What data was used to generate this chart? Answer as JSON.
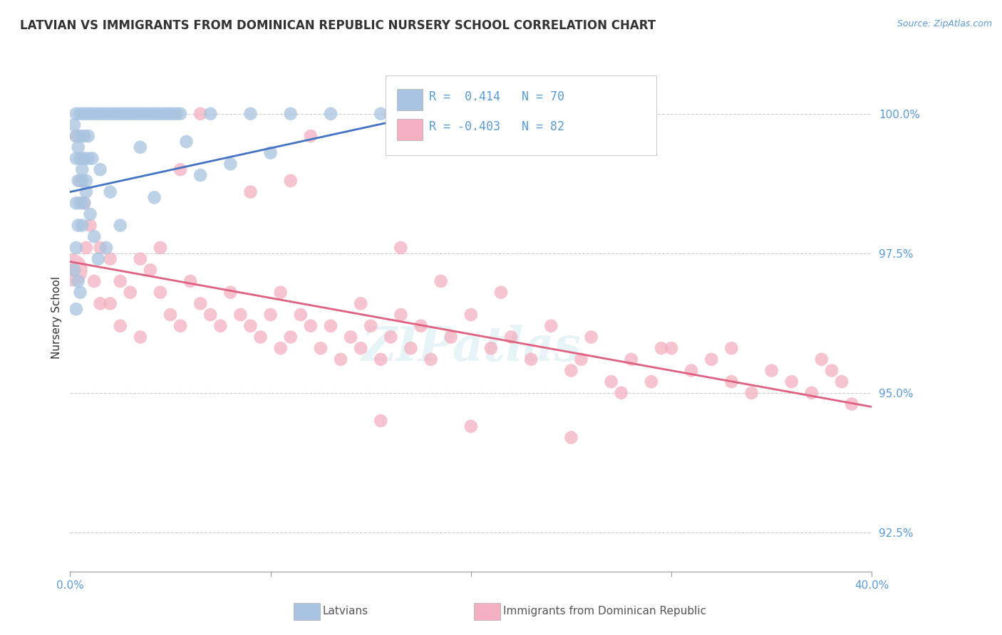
{
  "title": "LATVIAN VS IMMIGRANTS FROM DOMINICAN REPUBLIC NURSERY SCHOOL CORRELATION CHART",
  "source": "Source: ZipAtlas.com",
  "ylabel": "Nursery School",
  "y_ticks": [
    92.5,
    95.0,
    97.5,
    100.0
  ],
  "y_tick_labels": [
    "92.5%",
    "95.0%",
    "97.5%",
    "100.0%"
  ],
  "x_min": 0.0,
  "x_max": 40.0,
  "y_min": 91.8,
  "y_max": 100.9,
  "blue_R": 0.414,
  "blue_N": 70,
  "pink_R": -0.403,
  "pink_N": 82,
  "blue_color": "#a8c4e0",
  "blue_line_color": "#4472c4",
  "pink_color": "#f4b0c0",
  "pink_line_color": "#e06080",
  "legend_label_blue": "Latvians",
  "legend_label_pink": "Immigrants from Dominican Republic",
  "watermark": "ZIPatlas",
  "blue_line_x": [
    0.0,
    18.5
  ],
  "blue_line_y": [
    98.6,
    100.05
  ],
  "pink_line_x": [
    0.0,
    40.0
  ],
  "pink_line_y": [
    97.35,
    94.75
  ],
  "blue_dots": [
    [
      0.3,
      100.0
    ],
    [
      0.5,
      100.0
    ],
    [
      0.7,
      100.0
    ],
    [
      0.9,
      100.0
    ],
    [
      1.1,
      100.0
    ],
    [
      1.3,
      100.0
    ],
    [
      1.5,
      100.0
    ],
    [
      1.7,
      100.0
    ],
    [
      1.9,
      100.0
    ],
    [
      2.1,
      100.0
    ],
    [
      2.3,
      100.0
    ],
    [
      2.5,
      100.0
    ],
    [
      2.7,
      100.0
    ],
    [
      2.9,
      100.0
    ],
    [
      3.1,
      100.0
    ],
    [
      3.3,
      100.0
    ],
    [
      3.5,
      100.0
    ],
    [
      3.7,
      100.0
    ],
    [
      3.9,
      100.0
    ],
    [
      4.1,
      100.0
    ],
    [
      4.3,
      100.0
    ],
    [
      4.5,
      100.0
    ],
    [
      4.7,
      100.0
    ],
    [
      4.9,
      100.0
    ],
    [
      5.1,
      100.0
    ],
    [
      5.3,
      100.0
    ],
    [
      5.5,
      100.0
    ],
    [
      7.0,
      100.0
    ],
    [
      9.0,
      100.0
    ],
    [
      11.0,
      100.0
    ],
    [
      13.0,
      100.0
    ],
    [
      16.0,
      100.0
    ],
    [
      0.3,
      99.6
    ],
    [
      0.5,
      99.6
    ],
    [
      0.7,
      99.6
    ],
    [
      0.9,
      99.6
    ],
    [
      0.3,
      99.2
    ],
    [
      0.5,
      99.2
    ],
    [
      0.7,
      99.2
    ],
    [
      0.9,
      99.2
    ],
    [
      1.1,
      99.2
    ],
    [
      0.4,
      98.8
    ],
    [
      0.6,
      98.8
    ],
    [
      0.8,
      98.8
    ],
    [
      0.3,
      98.4
    ],
    [
      0.5,
      98.4
    ],
    [
      0.7,
      98.4
    ],
    [
      0.4,
      98.0
    ],
    [
      0.6,
      98.0
    ],
    [
      0.3,
      97.6
    ],
    [
      1.5,
      99.0
    ],
    [
      2.0,
      98.6
    ],
    [
      1.8,
      97.6
    ],
    [
      3.5,
      99.4
    ],
    [
      0.2,
      99.8
    ],
    [
      0.4,
      99.4
    ],
    [
      0.6,
      99.0
    ],
    [
      0.8,
      98.6
    ],
    [
      1.0,
      98.2
    ],
    [
      1.2,
      97.8
    ],
    [
      1.4,
      97.4
    ],
    [
      0.2,
      97.2
    ],
    [
      0.4,
      97.0
    ],
    [
      0.5,
      96.8
    ],
    [
      0.3,
      96.5
    ],
    [
      5.8,
      99.5
    ],
    [
      10.0,
      99.3
    ],
    [
      15.5,
      100.0
    ],
    [
      18.5,
      100.0
    ],
    [
      6.5,
      98.9
    ],
    [
      8.0,
      99.1
    ],
    [
      4.2,
      98.5
    ],
    [
      2.5,
      98.0
    ]
  ],
  "pink_dots_large": [
    [
      0.05,
      97.2
    ]
  ],
  "pink_dots": [
    [
      0.3,
      99.6
    ],
    [
      0.5,
      98.8
    ],
    [
      0.7,
      98.4
    ],
    [
      1.0,
      98.0
    ],
    [
      1.5,
      97.6
    ],
    [
      2.0,
      97.4
    ],
    [
      2.5,
      97.0
    ],
    [
      3.0,
      96.8
    ],
    [
      3.5,
      97.4
    ],
    [
      4.0,
      97.2
    ],
    [
      4.5,
      96.8
    ],
    [
      5.0,
      96.4
    ],
    [
      5.5,
      96.2
    ],
    [
      6.0,
      97.0
    ],
    [
      6.5,
      96.6
    ],
    [
      7.0,
      96.4
    ],
    [
      7.5,
      96.2
    ],
    [
      8.0,
      96.8
    ],
    [
      8.5,
      96.4
    ],
    [
      9.0,
      96.2
    ],
    [
      9.5,
      96.0
    ],
    [
      10.0,
      96.4
    ],
    [
      10.5,
      96.8
    ],
    [
      11.0,
      96.0
    ],
    [
      11.5,
      96.4
    ],
    [
      12.0,
      96.2
    ],
    [
      12.5,
      95.8
    ],
    [
      13.0,
      96.2
    ],
    [
      13.5,
      95.6
    ],
    [
      14.0,
      96.0
    ],
    [
      14.5,
      95.8
    ],
    [
      15.0,
      96.2
    ],
    [
      15.5,
      95.6
    ],
    [
      16.0,
      96.0
    ],
    [
      16.5,
      96.4
    ],
    [
      17.0,
      95.8
    ],
    [
      17.5,
      96.2
    ],
    [
      18.0,
      95.6
    ],
    [
      19.0,
      96.0
    ],
    [
      20.0,
      96.4
    ],
    [
      21.0,
      95.8
    ],
    [
      22.0,
      96.0
    ],
    [
      23.0,
      95.6
    ],
    [
      24.0,
      96.2
    ],
    [
      25.0,
      95.4
    ],
    [
      26.0,
      96.0
    ],
    [
      27.0,
      95.2
    ],
    [
      28.0,
      95.6
    ],
    [
      29.0,
      95.2
    ],
    [
      30.0,
      95.8
    ],
    [
      31.0,
      95.4
    ],
    [
      32.0,
      95.6
    ],
    [
      33.0,
      95.2
    ],
    [
      34.0,
      95.0
    ],
    [
      35.0,
      95.4
    ],
    [
      36.0,
      95.2
    ],
    [
      37.0,
      95.0
    ],
    [
      38.0,
      95.4
    ],
    [
      39.0,
      94.8
    ],
    [
      1.5,
      96.6
    ],
    [
      2.5,
      96.2
    ],
    [
      3.5,
      96.0
    ],
    [
      0.8,
      97.6
    ],
    [
      1.2,
      97.0
    ],
    [
      2.0,
      96.6
    ],
    [
      4.5,
      97.6
    ],
    [
      5.5,
      99.0
    ],
    [
      9.0,
      98.6
    ],
    [
      11.0,
      98.8
    ],
    [
      16.5,
      97.6
    ],
    [
      18.5,
      97.0
    ],
    [
      21.5,
      96.8
    ],
    [
      25.5,
      95.6
    ],
    [
      29.5,
      95.8
    ],
    [
      33.0,
      95.8
    ],
    [
      37.5,
      95.6
    ],
    [
      15.5,
      94.5
    ],
    [
      20.0,
      94.4
    ],
    [
      6.5,
      100.0
    ],
    [
      12.0,
      99.6
    ],
    [
      25.0,
      94.2
    ],
    [
      38.5,
      95.2
    ],
    [
      10.5,
      95.8
    ],
    [
      14.5,
      96.6
    ],
    [
      27.5,
      95.0
    ]
  ]
}
